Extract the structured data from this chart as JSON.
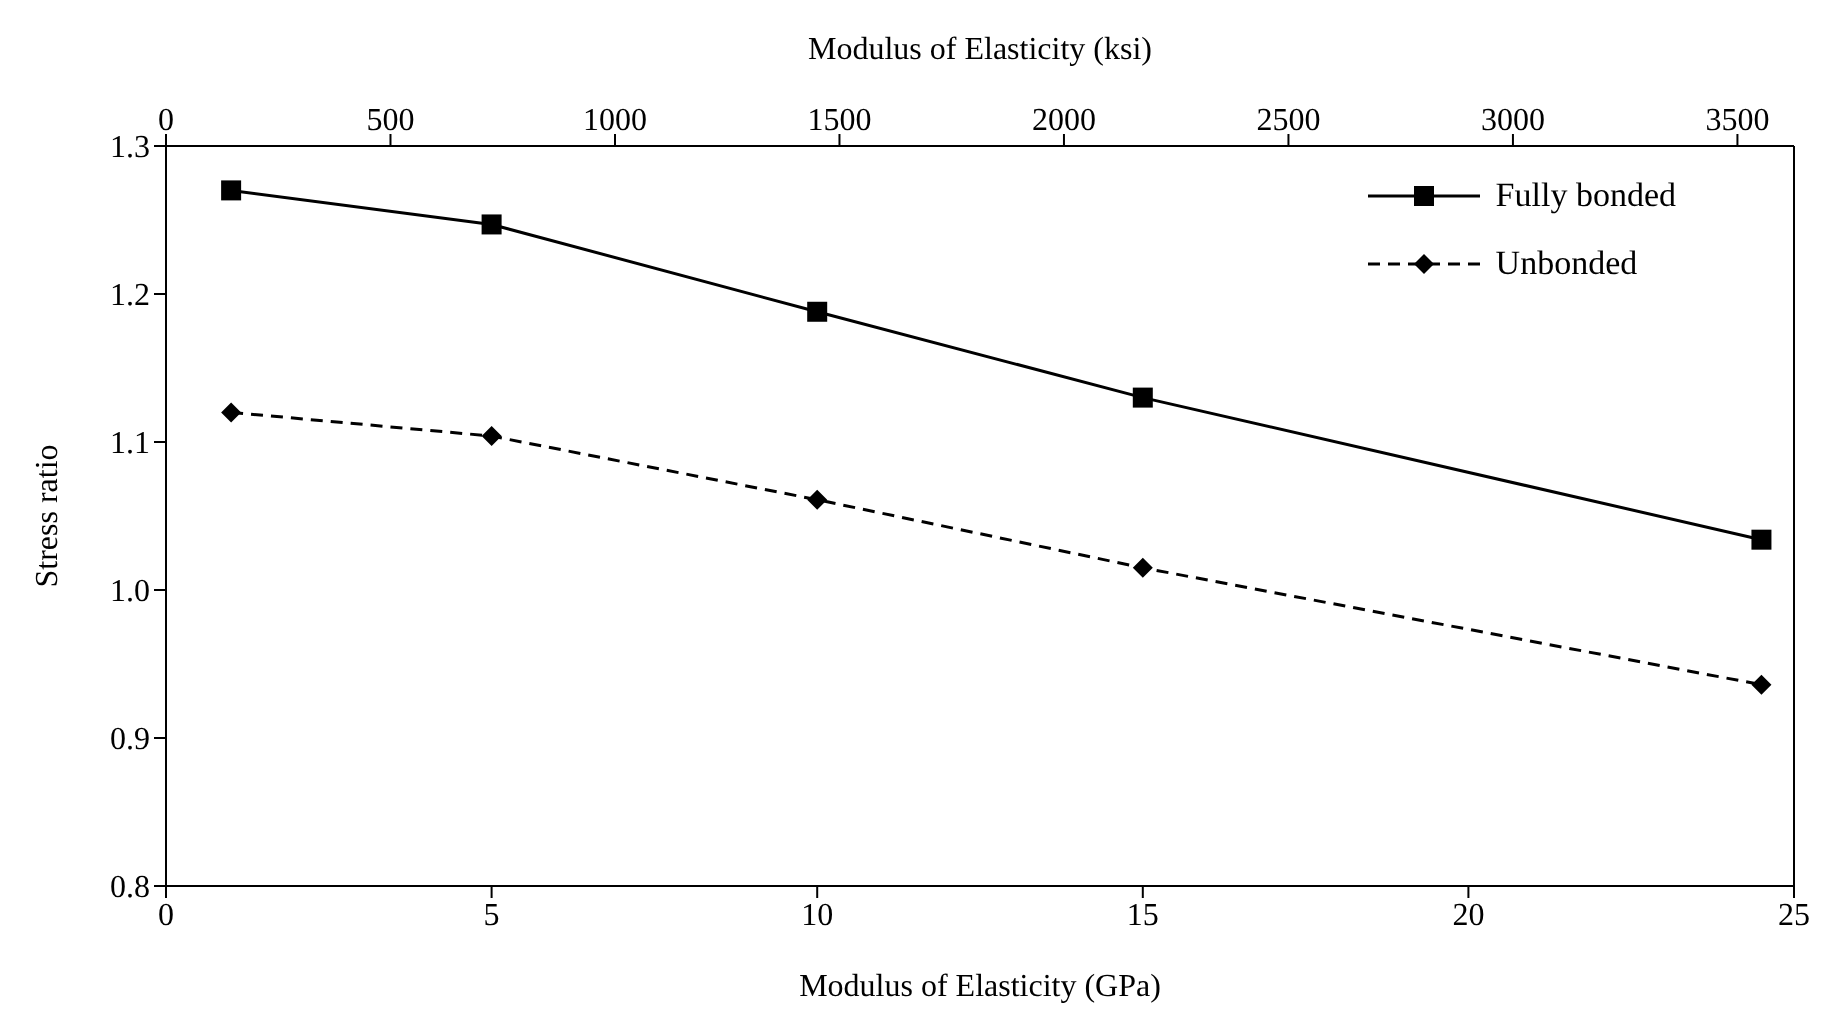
{
  "chart_data": {
    "type": "line",
    "xlabel": "Modulus of Elasticity (GPa)",
    "x2label": "Modulus of Elasticity (ksi)",
    "ylabel": "Stress ratio",
    "xlim": [
      0,
      25
    ],
    "xticks": [
      0,
      5,
      10,
      15,
      20,
      25
    ],
    "x2lim": [
      0,
      3626
    ],
    "x2ticks": [
      0,
      500,
      1000,
      1500,
      2000,
      2500,
      3000,
      3500
    ],
    "ylim": [
      0.8,
      1.3
    ],
    "yticks": [
      {
        "value": 0.8,
        "label": "0.8"
      },
      {
        "value": 0.9,
        "label": "0.9"
      },
      {
        "value": 1.0,
        "label": "1.0"
      },
      {
        "value": 1.1,
        "label": "1.1"
      },
      {
        "value": 1.2,
        "label": "1.2"
      },
      {
        "value": 1.3,
        "label": "1.3"
      }
    ],
    "x": [
      1,
      5,
      10,
      15,
      24.5
    ],
    "grid": false,
    "legend": "top right",
    "series": [
      {
        "name": "Fully bonded",
        "color": "#000000",
        "marker": "square",
        "line_style": "solid",
        "values": [
          1.27,
          1.247,
          1.188,
          1.13,
          1.034
        ]
      },
      {
        "name": "Unbonded",
        "color": "#000000",
        "marker": "diamond",
        "line_style": "dashed",
        "values": [
          1.12,
          1.104,
          1.061,
          1.015,
          0.936
        ]
      }
    ]
  }
}
